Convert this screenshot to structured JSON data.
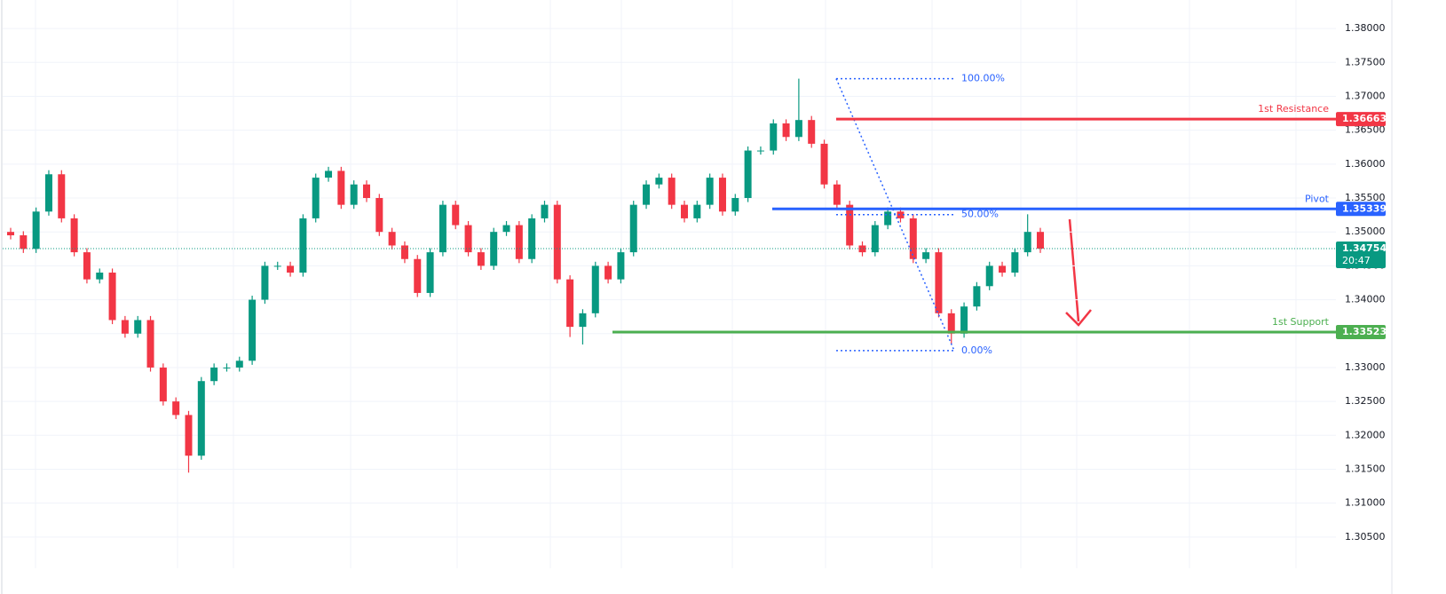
{
  "chart_data": {
    "type": "candlestick",
    "up_color": "#089981",
    "down_color": "#f23645",
    "ylim": [
      1.3004,
      1.3842
    ],
    "yticks": [
      {
        "value": 1.305,
        "label": "1.30500"
      },
      {
        "value": 1.31,
        "label": "1.31000"
      },
      {
        "value": 1.315,
        "label": "1.31500"
      },
      {
        "value": 1.32,
        "label": "1.32000"
      },
      {
        "value": 1.325,
        "label": "1.32500"
      },
      {
        "value": 1.33,
        "label": "1.33000"
      },
      {
        "value": 1.335,
        "label": "1.33500"
      },
      {
        "value": 1.34,
        "label": "1.34000"
      },
      {
        "value": 1.345,
        "label": "1.34500"
      },
      {
        "value": 1.35,
        "label": "1.35000"
      },
      {
        "value": 1.355,
        "label": "1.35500"
      },
      {
        "value": 1.36,
        "label": "1.36000"
      },
      {
        "value": 1.365,
        "label": "1.36500"
      },
      {
        "value": 1.37,
        "label": "1.37000"
      },
      {
        "value": 1.375,
        "label": "1.37500"
      },
      {
        "value": 1.38,
        "label": "1.38000"
      }
    ],
    "grid": true,
    "ohlc": [
      [
        1.35,
        1.3506,
        1.3489,
        1.3495
      ],
      [
        1.3495,
        1.3501,
        1.3469,
        1.3475
      ],
      [
        1.3475,
        1.3536,
        1.3469,
        1.353
      ],
      [
        1.353,
        1.3591,
        1.3524,
        1.3585
      ],
      [
        1.3585,
        1.3591,
        1.3514,
        1.352
      ],
      [
        1.352,
        1.3526,
        1.3464,
        1.347
      ],
      [
        1.347,
        1.3476,
        1.3424,
        1.343
      ],
      [
        1.343,
        1.3446,
        1.3424,
        1.344
      ],
      [
        1.344,
        1.3446,
        1.3364,
        1.337
      ],
      [
        1.337,
        1.3376,
        1.3344,
        1.335
      ],
      [
        1.335,
        1.3376,
        1.3344,
        1.337
      ],
      [
        1.337,
        1.3376,
        1.3294,
        1.33
      ],
      [
        1.33,
        1.3306,
        1.3244,
        1.325
      ],
      [
        1.325,
        1.3256,
        1.3224,
        1.323
      ],
      [
        1.323,
        1.3236,
        1.3145,
        1.317
      ],
      [
        1.317,
        1.3286,
        1.3164,
        1.328
      ],
      [
        1.328,
        1.3306,
        1.3274,
        1.33
      ],
      [
        1.33,
        1.3306,
        1.3294,
        1.33
      ],
      [
        1.33,
        1.3316,
        1.3294,
        1.331
      ],
      [
        1.331,
        1.3406,
        1.3304,
        1.34
      ],
      [
        1.34,
        1.3456,
        1.3394,
        1.345
      ],
      [
        1.345,
        1.3456,
        1.3444,
        1.345
      ],
      [
        1.345,
        1.3456,
        1.3434,
        1.344
      ],
      [
        1.344,
        1.3526,
        1.3434,
        1.352
      ],
      [
        1.352,
        1.3586,
        1.3514,
        1.358
      ],
      [
        1.358,
        1.3596,
        1.3574,
        1.359
      ],
      [
        1.359,
        1.3596,
        1.3534,
        1.354
      ],
      [
        1.354,
        1.3576,
        1.3534,
        1.357
      ],
      [
        1.357,
        1.3576,
        1.3544,
        1.355
      ],
      [
        1.355,
        1.3556,
        1.3494,
        1.35
      ],
      [
        1.35,
        1.3506,
        1.3474,
        1.348
      ],
      [
        1.348,
        1.3486,
        1.3454,
        1.346
      ],
      [
        1.346,
        1.3466,
        1.3404,
        1.341
      ],
      [
        1.341,
        1.3476,
        1.3404,
        1.347
      ],
      [
        1.347,
        1.3546,
        1.3464,
        1.354
      ],
      [
        1.354,
        1.3546,
        1.3504,
        1.351
      ],
      [
        1.351,
        1.3516,
        1.3464,
        1.347
      ],
      [
        1.347,
        1.3476,
        1.3444,
        1.345
      ],
      [
        1.345,
        1.3506,
        1.3444,
        1.35
      ],
      [
        1.35,
        1.3516,
        1.3494,
        1.351
      ],
      [
        1.351,
        1.3516,
        1.3454,
        1.346
      ],
      [
        1.346,
        1.3526,
        1.3454,
        1.352
      ],
      [
        1.352,
        1.3546,
        1.3514,
        1.354
      ],
      [
        1.354,
        1.3546,
        1.3424,
        1.343
      ],
      [
        1.343,
        1.3436,
        1.3345,
        1.336
      ],
      [
        1.336,
        1.3386,
        1.3334,
        1.338
      ],
      [
        1.338,
        1.3456,
        1.3374,
        1.345
      ],
      [
        1.345,
        1.3456,
        1.3424,
        1.343
      ],
      [
        1.343,
        1.3476,
        1.3424,
        1.347
      ],
      [
        1.347,
        1.3546,
        1.3464,
        1.354
      ],
      [
        1.354,
        1.3576,
        1.3534,
        1.357
      ],
      [
        1.357,
        1.3586,
        1.3564,
        1.358
      ],
      [
        1.358,
        1.3586,
        1.3534,
        1.354
      ],
      [
        1.354,
        1.3546,
        1.3514,
        1.352
      ],
      [
        1.352,
        1.3546,
        1.3514,
        1.354
      ],
      [
        1.354,
        1.3586,
        1.3534,
        1.358
      ],
      [
        1.358,
        1.3586,
        1.3524,
        1.353
      ],
      [
        1.353,
        1.3556,
        1.3524,
        1.355
      ],
      [
        1.355,
        1.3626,
        1.3544,
        1.362
      ],
      [
        1.362,
        1.3626,
        1.3614,
        1.362
      ],
      [
        1.362,
        1.3666,
        1.3614,
        1.366
      ],
      [
        1.366,
        1.3666,
        1.3634,
        1.364
      ],
      [
        1.364,
        1.3726,
        1.3634,
        1.3665
      ],
      [
        1.3665,
        1.3671,
        1.3624,
        1.363
      ],
      [
        1.363,
        1.3636,
        1.3564,
        1.357
      ],
      [
        1.357,
        1.3576,
        1.3534,
        1.354
      ],
      [
        1.354,
        1.3546,
        1.3474,
        1.348
      ],
      [
        1.348,
        1.3486,
        1.3464,
        1.347
      ],
      [
        1.347,
        1.3516,
        1.3464,
        1.351
      ],
      [
        1.351,
        1.3536,
        1.3504,
        1.353
      ],
      [
        1.353,
        1.3536,
        1.3514,
        1.352
      ],
      [
        1.352,
        1.3526,
        1.3454,
        1.346
      ],
      [
        1.346,
        1.3476,
        1.3454,
        1.347
      ],
      [
        1.347,
        1.3476,
        1.3374,
        1.338
      ],
      [
        1.338,
        1.3386,
        1.3335,
        1.335
      ],
      [
        1.335,
        1.3396,
        1.3344,
        1.339
      ],
      [
        1.339,
        1.3426,
        1.3384,
        1.342
      ],
      [
        1.342,
        1.3456,
        1.3414,
        1.345
      ],
      [
        1.345,
        1.3456,
        1.3434,
        1.344
      ],
      [
        1.344,
        1.3476,
        1.3434,
        1.347
      ],
      [
        1.347,
        1.3526,
        1.3464,
        1.35
      ],
      [
        1.35,
        1.3506,
        1.3469,
        1.34754
      ]
    ],
    "levels": [
      {
        "label": "1st Resistance",
        "value": 1.36663,
        "color": "#f23645"
      },
      {
        "label": "Pivot",
        "value": 1.35339,
        "color": "#2962ff"
      },
      {
        "label": "1st Support",
        "value": 1.33523,
        "color": "#4caf50"
      }
    ],
    "fib": [
      {
        "label": "100.00%",
        "value": 1.3726
      },
      {
        "label": "50.00%",
        "value": 1.35255
      },
      {
        "label": "0.00%",
        "value": 1.3325
      }
    ],
    "fib_color": "#2962ff",
    "last_price": 1.34754,
    "last_color": "#089981",
    "countdown": "20:47"
  }
}
